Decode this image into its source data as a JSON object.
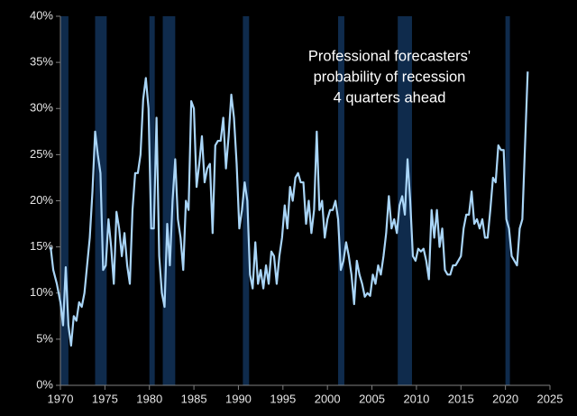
{
  "chart_data": {
    "type": "line",
    "title_lines": [
      "Professional forecasters'",
      "probability of recession",
      "4 quarters ahead"
    ],
    "color": "#a9d5f7",
    "shade_color": "#0f2b4c",
    "recessions": [
      [
        1969.9,
        1970.9
      ],
      [
        1973.9,
        1975.2
      ],
      [
        1980.0,
        1980.6
      ],
      [
        1981.5,
        1982.9
      ],
      [
        1990.5,
        1991.2
      ],
      [
        2001.2,
        2001.9
      ],
      [
        2007.9,
        2009.5
      ],
      [
        2020.0,
        2020.5
      ]
    ],
    "x": [
      1968.9,
      1969.2,
      1969.6,
      1970.0,
      1970.3,
      1970.6,
      1970.9,
      1971.2,
      1971.5,
      1971.8,
      1972.1,
      1972.4,
      1972.7,
      1973.0,
      1973.3,
      1973.6,
      1973.9,
      1974.2,
      1974.5,
      1974.8,
      1975.1,
      1975.4,
      1975.7,
      1976.0,
      1976.3,
      1976.6,
      1976.9,
      1977.2,
      1977.5,
      1977.8,
      1978.1,
      1978.4,
      1978.7,
      1979.0,
      1979.3,
      1979.6,
      1979.9,
      1980.2,
      1980.5,
      1980.8,
      1981.1,
      1981.4,
      1981.7,
      1982.0,
      1982.3,
      1982.6,
      1982.9,
      1983.2,
      1983.5,
      1983.8,
      1984.1,
      1984.4,
      1984.7,
      1985.0,
      1985.3,
      1985.6,
      1985.9,
      1986.2,
      1986.5,
      1986.8,
      1987.1,
      1987.4,
      1987.7,
      1988.0,
      1988.3,
      1988.6,
      1988.9,
      1989.2,
      1989.5,
      1989.8,
      1990.1,
      1990.4,
      1990.7,
      1991.0,
      1991.3,
      1991.6,
      1991.9,
      1992.2,
      1992.5,
      1992.8,
      1993.1,
      1993.4,
      1993.7,
      1994.0,
      1994.3,
      1994.6,
      1994.9,
      1995.2,
      1995.5,
      1995.8,
      1996.1,
      1996.4,
      1996.7,
      1997.0,
      1997.3,
      1997.6,
      1997.9,
      1998.2,
      1998.5,
      1998.8,
      1999.1,
      1999.4,
      1999.7,
      2000.0,
      2000.3,
      2000.6,
      2000.9,
      2001.2,
      2001.5,
      2001.8,
      2002.1,
      2002.4,
      2002.7,
      2003.0,
      2003.3,
      2003.6,
      2003.9,
      2004.2,
      2004.5,
      2004.8,
      2005.1,
      2005.4,
      2005.7,
      2006.0,
      2006.3,
      2006.6,
      2006.9,
      2007.2,
      2007.5,
      2007.8,
      2008.1,
      2008.4,
      2008.7,
      2009.0,
      2009.3,
      2009.6,
      2009.9,
      2010.2,
      2010.5,
      2010.8,
      2011.1,
      2011.4,
      2011.7,
      2012.0,
      2012.3,
      2012.6,
      2012.9,
      2013.2,
      2013.5,
      2013.8,
      2014.1,
      2014.4,
      2014.7,
      2015.0,
      2015.3,
      2015.6,
      2015.9,
      2016.2,
      2016.5,
      2016.8,
      2017.1,
      2017.4,
      2017.7,
      2018.0,
      2018.3,
      2018.6,
      2018.9,
      2019.2,
      2019.5,
      2019.8,
      2020.1,
      2020.4,
      2020.7,
      2021.0,
      2021.3,
      2021.6,
      2021.9,
      2022.5
    ],
    "values": [
      15,
      12.5,
      11,
      9,
      6.5,
      12.8,
      6.5,
      4.3,
      7.5,
      7,
      9,
      8.5,
      10,
      13,
      16,
      21,
      27.5,
      25,
      23,
      12.5,
      13,
      18,
      15,
      11,
      18.8,
      17,
      14,
      16.5,
      13,
      11,
      19,
      23,
      23,
      25,
      31,
      33.3,
      30,
      17,
      17,
      29,
      14,
      10,
      8.5,
      17.5,
      13,
      20,
      24.5,
      18,
      16,
      12.5,
      20,
      19,
      30.8,
      30,
      21.5,
      24,
      27,
      22,
      23.5,
      24,
      16.5,
      26,
      26.5,
      26.5,
      29,
      23.5,
      27,
      31.5,
      29,
      24,
      17,
      19,
      22,
      20,
      12,
      10.5,
      15.5,
      11,
      12.5,
      10.5,
      13,
      11,
      14.5,
      14,
      11,
      14,
      16,
      19.5,
      17,
      21.5,
      20,
      22.5,
      23,
      22,
      22,
      17.5,
      20,
      16.5,
      19,
      27.5,
      19,
      20,
      16,
      18,
      19,
      19,
      20,
      18,
      12.5,
      13.5,
      15.5,
      14,
      12,
      8.8,
      13.5,
      12,
      11,
      9.6,
      10,
      9.7,
      12,
      11,
      13,
      12,
      14,
      16.5,
      20.5,
      17,
      18,
      16.5,
      19.5,
      20.5,
      18.5,
      24.5,
      20,
      14,
      13.5,
      14.8,
      14.5,
      14.8,
      13.5,
      11.5,
      19,
      16,
      19,
      15,
      17,
      12.5,
      12,
      12,
      13,
      13,
      13.5,
      14,
      17,
      18.5,
      18.5,
      21,
      17.5,
      18,
      17,
      18,
      16,
      16,
      19,
      22.5,
      22,
      26,
      25.5,
      25.5,
      18,
      17,
      14,
      13.5,
      13,
      17,
      18,
      34
    ],
    "xlim": [
      1970,
      2025
    ],
    "xticks": [
      1970,
      1975,
      1980,
      1985,
      1990,
      1995,
      2000,
      2005,
      2010,
      2015,
      2020,
      2025
    ],
    "ylim": [
      0,
      40
    ],
    "yticks": [
      {
        "value": 0,
        "label": "0%"
      },
      {
        "value": 5,
        "label": "5%"
      },
      {
        "value": 10,
        "label": "10%"
      },
      {
        "value": 15,
        "label": "15%"
      },
      {
        "value": 20,
        "label": "20%"
      },
      {
        "value": 25,
        "label": "25%"
      },
      {
        "value": 30,
        "label": "30%"
      },
      {
        "value": 35,
        "label": "35%"
      },
      {
        "value": 40,
        "label": "40%"
      }
    ]
  }
}
